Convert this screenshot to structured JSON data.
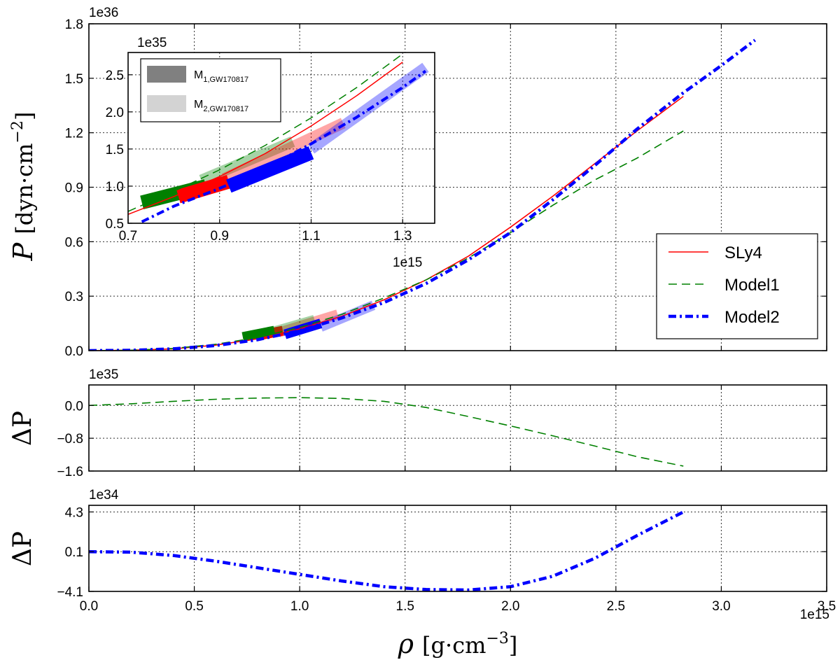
{
  "chart_data": [
    {
      "id": "main",
      "type": "line",
      "ylabel": "P [dyn·cm⁻²]",
      "ylabel_parts": {
        "symbol": "P",
        "unit": "dyn",
        "unit2": "cm",
        "exp": "−2"
      },
      "y_scale_label": "1e36",
      "x_scale_label": "1e15",
      "xlim": [
        0.0,
        3.5
      ],
      "ylim": [
        0.0,
        1.8
      ],
      "y_ticks": [
        "0.0",
        "0.3",
        "0.6",
        "0.9",
        "1.2",
        "1.5",
        "1.8"
      ],
      "series": [
        {
          "name": "SLy4",
          "color": "#ff0000",
          "style": "solid",
          "x": [
            0.0,
            0.2,
            0.4,
            0.6,
            0.8,
            1.0,
            1.2,
            1.4,
            1.6,
            1.8,
            2.0,
            2.2,
            2.4,
            2.6,
            2.82
          ],
          "y": [
            0.0,
            0.002,
            0.01,
            0.03,
            0.065,
            0.12,
            0.19,
            0.28,
            0.39,
            0.52,
            0.68,
            0.85,
            1.03,
            1.21,
            1.4
          ]
        },
        {
          "name": "Model1",
          "color": "#008000",
          "style": "dashed",
          "x": [
            0.0,
            0.2,
            0.4,
            0.6,
            0.8,
            1.0,
            1.2,
            1.4,
            1.6,
            1.8,
            2.0,
            2.2,
            2.4,
            2.6,
            2.82
          ],
          "y": [
            0.0,
            0.002,
            0.012,
            0.035,
            0.072,
            0.128,
            0.2,
            0.29,
            0.39,
            0.51,
            0.65,
            0.8,
            0.94,
            1.06,
            1.21
          ]
        },
        {
          "name": "Model2",
          "color": "#0000ff",
          "style": "dashdot",
          "x": [
            0.0,
            0.2,
            0.4,
            0.6,
            0.8,
            1.0,
            1.2,
            1.4,
            1.6,
            1.8,
            2.0,
            2.2,
            2.4,
            2.6,
            2.82,
            3.0,
            3.16
          ],
          "y": [
            0.0,
            0.002,
            0.01,
            0.028,
            0.06,
            0.11,
            0.18,
            0.265,
            0.37,
            0.5,
            0.65,
            0.83,
            1.02,
            1.22,
            1.42,
            1.57,
            1.71
          ]
        }
      ],
      "bands": [
        {
          "label": "SLy4 M1",
          "color": "#ff0000",
          "opacity": 1.0,
          "x": [
            0.81,
            0.92
          ],
          "y": [
            0.085,
            0.11
          ],
          "width": 0.05
        },
        {
          "label": "SLy4 M2",
          "color": "#ff0000",
          "opacity": 0.35,
          "x": [
            0.9,
            1.18
          ],
          "y": [
            0.1,
            0.2
          ],
          "width": 0.04
        },
        {
          "label": "Model1 M1",
          "color": "#008000",
          "opacity": 1.0,
          "x": [
            0.73,
            0.88
          ],
          "y": [
            0.075,
            0.11
          ],
          "width": 0.05
        },
        {
          "label": "Model1 M2",
          "color": "#008000",
          "opacity": 0.35,
          "x": [
            0.86,
            1.07
          ],
          "y": [
            0.1,
            0.17
          ],
          "width": 0.04
        },
        {
          "label": "Model2 M1",
          "color": "#0000ff",
          "opacity": 1.0,
          "x": [
            0.93,
            1.1
          ],
          "y": [
            0.09,
            0.15
          ],
          "width": 0.05
        },
        {
          "label": "Model2 M2",
          "color": "#0000ff",
          "opacity": 0.35,
          "x": [
            1.1,
            1.35
          ],
          "y": [
            0.13,
            0.25
          ],
          "width": 0.04
        }
      ],
      "legend": {
        "position": "lower-right",
        "entries": [
          "SLy4",
          "Model1",
          "Model2"
        ]
      }
    },
    {
      "id": "inset",
      "type": "line",
      "y_scale_label": "1e35",
      "x_scale_label": "1e15",
      "xlim": [
        0.7,
        1.37
      ],
      "ylim": [
        0.5,
        2.8
      ],
      "x_ticks": [
        "0.7",
        "0.9",
        "1.1",
        "1.3"
      ],
      "y_ticks": [
        "0.5",
        "1.0",
        "1.5",
        "2.0",
        "2.5"
      ],
      "series": [
        {
          "name": "SLy4",
          "x": [
            0.7,
            0.8,
            0.9,
            1.0,
            1.1,
            1.2,
            1.3
          ],
          "y": [
            0.62,
            0.86,
            1.13,
            1.44,
            1.81,
            2.22,
            2.67
          ]
        },
        {
          "name": "Model1",
          "x": [
            0.7,
            0.8,
            0.9,
            1.0,
            1.1,
            1.2,
            1.3
          ],
          "y": [
            0.66,
            0.93,
            1.22,
            1.55,
            1.92,
            2.33,
            2.78
          ]
        },
        {
          "name": "Model2",
          "x": [
            0.73,
            0.8,
            0.9,
            1.0,
            1.1,
            1.2,
            1.3,
            1.35
          ],
          "y": [
            0.52,
            0.73,
            0.97,
            1.24,
            1.57,
            1.93,
            2.33,
            2.55
          ]
        }
      ],
      "bands": [
        {
          "label": "Model1 M1",
          "color": "#008000",
          "opacity": 1.0,
          "x": [
            0.73,
            0.87
          ],
          "y": [
            0.78,
            1.0
          ],
          "width": 0.2
        },
        {
          "label": "Model1 M2",
          "color": "#008000",
          "opacity": 0.35,
          "x": [
            0.86,
            1.06
          ],
          "y": [
            1.08,
            1.6
          ],
          "width": 0.17
        },
        {
          "label": "SLy4 M1",
          "color": "#ff0000",
          "opacity": 1.0,
          "x": [
            0.81,
            0.92
          ],
          "y": [
            0.86,
            1.06
          ],
          "width": 0.2
        },
        {
          "label": "SLy4 M2",
          "color": "#ff0000",
          "opacity": 0.35,
          "x": [
            0.91,
            1.17
          ],
          "y": [
            1.1,
            1.85
          ],
          "width": 0.17
        },
        {
          "label": "Model2 M1",
          "color": "#0000ff",
          "opacity": 1.0,
          "x": [
            0.92,
            1.1
          ],
          "y": [
            1.0,
            1.45
          ],
          "width": 0.2
        },
        {
          "label": "Model2 M2",
          "color": "#0000ff",
          "opacity": 0.35,
          "x": [
            1.1,
            1.35
          ],
          "y": [
            1.5,
            2.6
          ],
          "width": 0.17
        }
      ],
      "legend": {
        "position": "top-left",
        "entries": [
          {
            "label": "M",
            "sub": "1,GW170817",
            "color": "#808080"
          },
          {
            "label": "M",
            "sub": "2,GW170817",
            "color": "#d3d3d3"
          }
        ]
      }
    },
    {
      "id": "residual1",
      "type": "line",
      "ylabel": "ΔP",
      "y_scale_label": "1e35",
      "ylim": [
        -1.6,
        0.5
      ],
      "y_ticks": [
        "0.0",
        "−0.8",
        "−1.6"
      ],
      "series": [
        {
          "name": "Model1 − SLy4",
          "color": "#008000",
          "style": "dashed",
          "x": [
            0.0,
            0.2,
            0.4,
            0.6,
            0.8,
            1.0,
            1.2,
            1.4,
            1.6,
            1.8,
            2.0,
            2.2,
            2.4,
            2.6,
            2.82
          ],
          "y": [
            0.0,
            0.04,
            0.1,
            0.15,
            0.18,
            0.19,
            0.17,
            0.1,
            -0.05,
            -0.27,
            -0.5,
            -0.74,
            -0.99,
            -1.25,
            -1.48
          ]
        }
      ]
    },
    {
      "id": "residual2",
      "type": "line",
      "ylabel": "ΔP",
      "y_scale_label": "1e34",
      "x_scale_label": "1e15",
      "xlabel": "ρ [g·cm⁻³]",
      "xlabel_parts": {
        "symbol": "ρ",
        "unit": "g",
        "unit2": "cm",
        "exp": "−3"
      },
      "xlim": [
        0.0,
        3.5
      ],
      "x_ticks": [
        "0.0",
        "0.5",
        "1.0",
        "1.5",
        "2.0",
        "2.5",
        "3.0",
        "3.5"
      ],
      "ylim": [
        -4.1,
        5.0
      ],
      "y_ticks": [
        "4.3",
        "0.1",
        "−4.1"
      ],
      "series": [
        {
          "name": "Model2 − SLy4",
          "color": "#0000ff",
          "style": "dashdot",
          "x": [
            0.0,
            0.2,
            0.4,
            0.6,
            0.8,
            1.0,
            1.2,
            1.4,
            1.6,
            1.8,
            2.0,
            2.2,
            2.4,
            2.6,
            2.82
          ],
          "y": [
            0.1,
            0.05,
            -0.3,
            -0.9,
            -1.6,
            -2.3,
            -3.0,
            -3.6,
            -3.9,
            -3.95,
            -3.6,
            -2.5,
            -0.6,
            1.8,
            4.3
          ]
        }
      ]
    }
  ]
}
